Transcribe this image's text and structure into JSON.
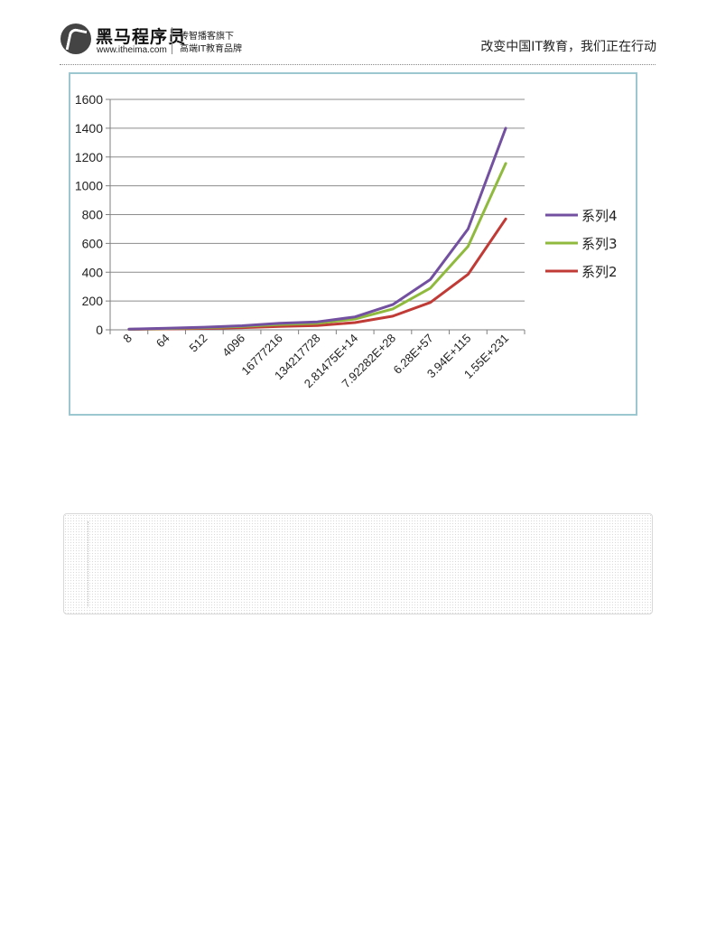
{
  "header": {
    "brand_name": "黑马程序员",
    "brand_url": "www.itheima.com",
    "tagline_line1": "传智播客旗下",
    "tagline_line2": "高端IT教育品牌",
    "slogan": "改变中国IT教育，我们正在行动",
    "logo_icon": "horse-logo-icon"
  },
  "chart_data": {
    "type": "line",
    "categories": [
      "8",
      "64",
      "512",
      "4096",
      "16777216",
      "134217728",
      "2.81475E+14",
      "7.92282E+28",
      "6.28E+57",
      "3.94E+115",
      "1.55E+231"
    ],
    "ylim": [
      0,
      1600
    ],
    "yticks": [
      0,
      200,
      400,
      600,
      800,
      1000,
      1200,
      1400,
      1600
    ],
    "grid": true,
    "legend_position": "right",
    "series": [
      {
        "name": "系列4",
        "color": "#7350a0",
        "values": [
          5,
          11,
          18,
          28,
          45,
          55,
          90,
          175,
          350,
          700,
          1400
        ]
      },
      {
        "name": "系列3",
        "color": "#8fba3e",
        "values": [
          4,
          9,
          15,
          23,
          37,
          45,
          75,
          145,
          290,
          580,
          1155
        ]
      },
      {
        "name": "系列2",
        "color": "#c03a36",
        "values": [
          3,
          6,
          10,
          15,
          24,
          30,
          50,
          95,
          190,
          385,
          770
        ]
      }
    ]
  }
}
